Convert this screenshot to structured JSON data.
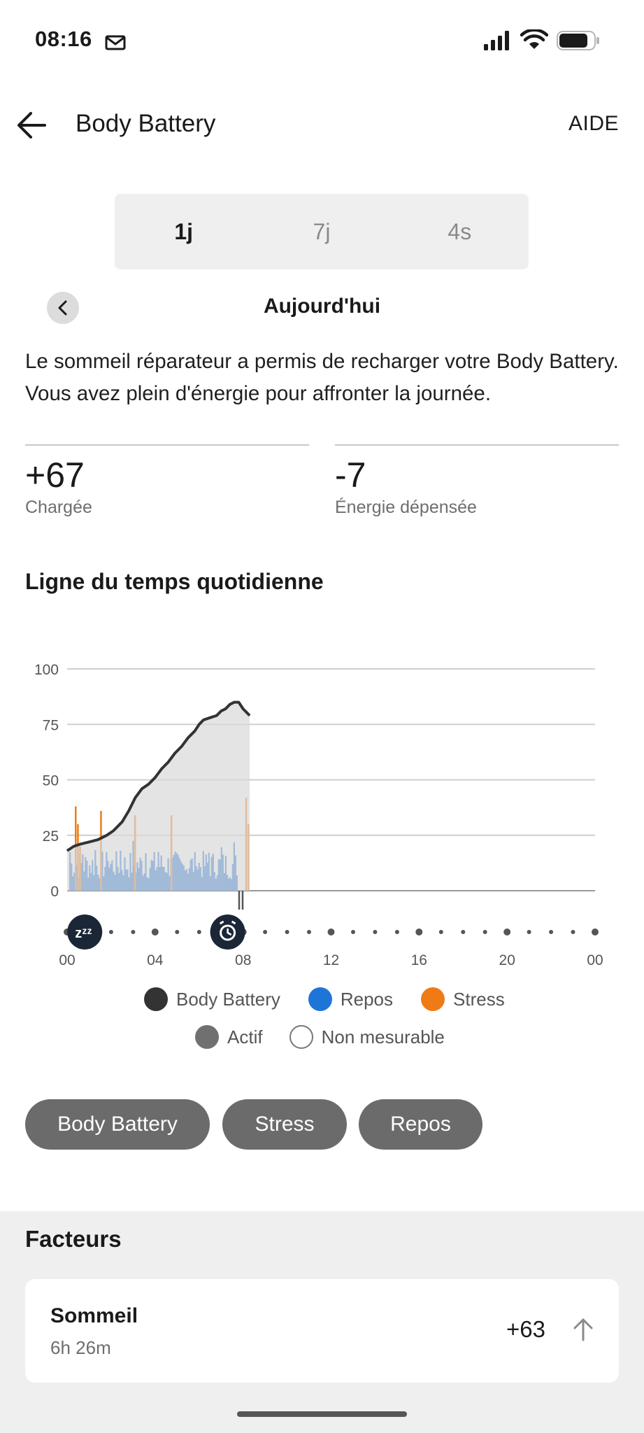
{
  "status_bar": {
    "time": "08:16",
    "icons": [
      "mail-icon",
      "signal-icon",
      "wifi-icon",
      "battery-icon"
    ]
  },
  "header": {
    "title": "Body Battery",
    "help_label": "AIDE",
    "back_icon": "arrow-left-icon"
  },
  "tabs": [
    {
      "label": "1j",
      "selected": true
    },
    {
      "label": "7j",
      "selected": false
    },
    {
      "label": "4s",
      "selected": false
    }
  ],
  "date_nav": {
    "label": "Aujourd'hui",
    "prev_icon": "chevron-left-icon"
  },
  "summary": "Le sommeil réparateur a permis de recharger votre Body Battery. Vous avez plein d'énergie pour affronter la journée.",
  "stats": {
    "charged": {
      "value": "+67",
      "label": "Chargée"
    },
    "drained": {
      "value": "-7",
      "label": "Énergie dépensée"
    }
  },
  "timeline_title": "Ligne du temps quotidienne",
  "colors": {
    "body_battery": "#333333",
    "rest": "#1f74d8",
    "stress": "#f07b16",
    "active": "#707070",
    "chip": "#6b6b6b"
  },
  "chart_data": {
    "type": "line",
    "y_ticks": [
      "100",
      "75",
      "50",
      "25",
      "0"
    ],
    "ylim": [
      0,
      100
    ],
    "x_ticks": [
      "00",
      "04",
      "08",
      "12",
      "16",
      "20",
      "00"
    ],
    "xlim_hours": [
      0,
      24
    ],
    "grid": true,
    "markers": [
      {
        "type": "sleep",
        "icon": "sleep-zzz-icon",
        "hour": 0.8
      },
      {
        "type": "wake",
        "icon": "alarm-clock-icon",
        "hour": 7.3
      }
    ],
    "series": [
      {
        "name": "Body Battery",
        "x_hours": [
          0,
          0.3,
          0.6,
          1.0,
          1.4,
          1.8,
          2.1,
          2.5,
          2.8,
          3.1,
          3.4,
          3.7,
          4.0,
          4.3,
          4.6,
          4.9,
          5.2,
          5.5,
          5.8,
          6.0,
          6.2,
          6.5,
          6.8,
          7.0,
          7.2,
          7.4,
          7.6,
          7.8,
          8.0,
          8.3
        ],
        "values": [
          18,
          20,
          21,
          22,
          23,
          25,
          27,
          31,
          36,
          42,
          46,
          48,
          51,
          55,
          58,
          62,
          65,
          69,
          72,
          75,
          77,
          78,
          79,
          81,
          82,
          84,
          85,
          85,
          82,
          79
        ]
      }
    ],
    "legend": [
      {
        "label": "Body Battery",
        "color": "#333333"
      },
      {
        "label": "Repos",
        "color": "#1f74d8"
      },
      {
        "label": "Stress",
        "color": "#f07b16"
      },
      {
        "label": "Actif",
        "color": "#707070"
      },
      {
        "label": "Non mesurable",
        "color": "#ffffff"
      }
    ]
  },
  "chips": [
    "Body Battery",
    "Stress",
    "Repos"
  ],
  "factors": {
    "title": "Facteurs",
    "items": [
      {
        "name": "Sommeil",
        "subtitle": "6h 26m",
        "value": "+63",
        "icon": "arrow-up-icon"
      }
    ]
  }
}
